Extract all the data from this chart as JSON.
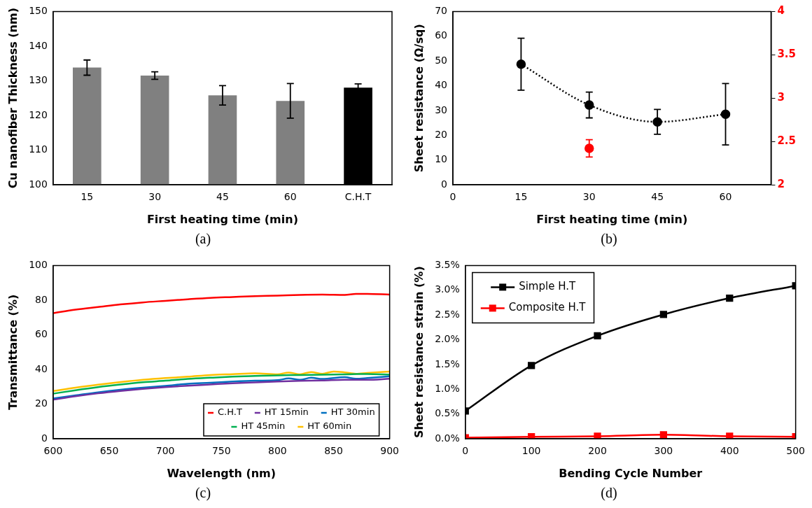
{
  "chart_data": [
    {
      "type": "bar",
      "xlabel": "First heating time (min)",
      "ylabel": "Cu nanofiber Thickness (nm)",
      "annotations": [
        "(a)"
      ],
      "categories": [
        "15",
        "30",
        "45",
        "60",
        "C.H.T"
      ],
      "values": [
        133.8,
        131.5,
        125.8,
        124.2,
        128
      ],
      "colors": [
        "#808080",
        "#808080",
        "#808080",
        "#808080",
        "#000000"
      ],
      "errors": [
        2.2,
        1.1,
        2.8,
        5,
        1.1
      ],
      "ylim": [
        100,
        150
      ],
      "yticks": [
        100,
        110,
        120,
        130,
        140,
        150
      ],
      "grid": false
    },
    {
      "type": "line",
      "xlabel": "First heating time (min)",
      "ylabel": "Sheet resistance (Ω/sq)",
      "annotations": [
        "(b)"
      ],
      "marker": "circle",
      "xlim": [
        0,
        70
      ],
      "xticks": [
        0,
        15,
        30,
        45,
        60
      ],
      "ylim": [
        0,
        70
      ],
      "yticks": [
        0,
        10,
        20,
        30,
        40,
        50,
        60,
        70
      ],
      "y2lim": [
        2,
        4
      ],
      "y2ticks": [
        2,
        2.5,
        3,
        3.5,
        4
      ],
      "grid": false,
      "series": [
        {
          "color": "#000000",
          "line_style": "dotted",
          "x": [
            15,
            30,
            45,
            60
          ],
          "values": [
            48.7,
            32.2,
            25.4,
            28.5
          ],
          "errors": [
            10.5,
            5.2,
            5,
            12.4
          ]
        },
        {
          "type": "scatter",
          "axis": "y2",
          "color": "#ff0000",
          "x": [
            30
          ],
          "values": [
            2.42
          ],
          "errors": [
            0.1
          ]
        }
      ]
    },
    {
      "type": "line",
      "xlabel": "Wavelength (nm)",
      "ylabel": "Transmittance (%)",
      "annotations": [
        "(c)"
      ],
      "marker": "none",
      "legend": "bottom right",
      "xlim": [
        600,
        900
      ],
      "xticks": [
        600,
        650,
        700,
        750,
        800,
        850,
        900
      ],
      "ylim": [
        0,
        100
      ],
      "yticks": [
        0,
        20,
        40,
        60,
        80,
        100
      ],
      "grid": false,
      "series": [
        {
          "name": "C.H.T",
          "color": "#ff0000",
          "x": [
            600,
            620,
            640,
            660,
            680,
            700,
            720,
            740,
            760,
            780,
            800,
            820,
            840,
            860,
            870,
            880,
            900
          ],
          "values": [
            72.5,
            74.5,
            76,
            77.5,
            78.7,
            79.6,
            80.5,
            81.3,
            81.8,
            82.3,
            82.6,
            83,
            83.2,
            83,
            83.6,
            83.6,
            83.2
          ]
        },
        {
          "name": "HT 15min",
          "color": "#7030a0",
          "x": [
            600,
            620,
            640,
            660,
            680,
            700,
            720,
            740,
            760,
            780,
            800,
            820,
            840,
            860,
            880,
            900
          ],
          "values": [
            22.5,
            24.5,
            26.2,
            27.6,
            28.8,
            29.8,
            30.6,
            31.3,
            32,
            32.5,
            33,
            33.4,
            33.6,
            34,
            34,
            34.6
          ]
        },
        {
          "name": "HT 30min",
          "color": "#0070c0",
          "x": [
            600,
            620,
            640,
            660,
            680,
            700,
            720,
            740,
            760,
            780,
            800,
            810,
            820,
            830,
            840,
            860,
            870,
            880,
            900
          ],
          "values": [
            23.2,
            25,
            26.8,
            28.3,
            29.5,
            30.5,
            31.7,
            32.3,
            33,
            33.5,
            33.8,
            34.8,
            34,
            35.2,
            34.5,
            35.5,
            34.6,
            35,
            36
          ]
        },
        {
          "name": "HT 45min",
          "color": "#00b050",
          "x": [
            600,
            620,
            640,
            660,
            680,
            700,
            720,
            740,
            760,
            780,
            800,
            820,
            840,
            860,
            880,
            900
          ],
          "values": [
            26,
            28,
            29.8,
            31.3,
            32.6,
            33.5,
            34.5,
            35.2,
            35.8,
            36.2,
            36.6,
            36.8,
            37,
            37.2,
            37.4,
            37
          ]
        },
        {
          "name": "HT 60min",
          "color": "#ffc000",
          "x": [
            600,
            620,
            640,
            660,
            680,
            700,
            720,
            740,
            760,
            780,
            800,
            810,
            820,
            830,
            840,
            850,
            860,
            870,
            880,
            900
          ],
          "values": [
            27.5,
            29.5,
            31.2,
            32.7,
            34,
            35,
            35.8,
            36.8,
            37.3,
            37.8,
            37.2,
            38.2,
            37.2,
            38.5,
            37.5,
            38.8,
            38.3,
            37.5,
            38,
            38.8
          ]
        }
      ]
    },
    {
      "type": "line",
      "xlabel": "Bending Cycle Number",
      "ylabel": "Sheet resistance strain (%)",
      "annotations": [
        "(d)"
      ],
      "marker": "square",
      "legend": "top left",
      "xlim": [
        0,
        500
      ],
      "xticks": [
        0,
        100,
        200,
        300,
        400,
        500
      ],
      "ylim": [
        0,
        3.5
      ],
      "yticks": [
        {
          "value": 0,
          "label": "0.0%"
        },
        {
          "value": 0.5,
          "label": "0.5%"
        },
        {
          "value": 1,
          "label": "1.0%"
        },
        {
          "value": 1.5,
          "label": "1.5%"
        },
        {
          "value": 2,
          "label": "2.0%"
        },
        {
          "value": 2.5,
          "label": "2.5%"
        },
        {
          "value": 3,
          "label": "3.0%"
        },
        {
          "value": 3.5,
          "label": "3.5%"
        }
      ],
      "grid": false,
      "series": [
        {
          "name": "Simple H.T",
          "color": "#000000",
          "x": [
            0,
            100,
            200,
            300,
            400,
            500
          ],
          "values": [
            0.56,
            1.48,
            2.08,
            2.51,
            2.84,
            3.09
          ]
        },
        {
          "name": "Composite H.T",
          "color": "#ff0000",
          "x": [
            0,
            100,
            200,
            300,
            400,
            500
          ],
          "values": [
            0.02,
            0.04,
            0.05,
            0.08,
            0.05,
            0.04
          ]
        }
      ]
    }
  ]
}
